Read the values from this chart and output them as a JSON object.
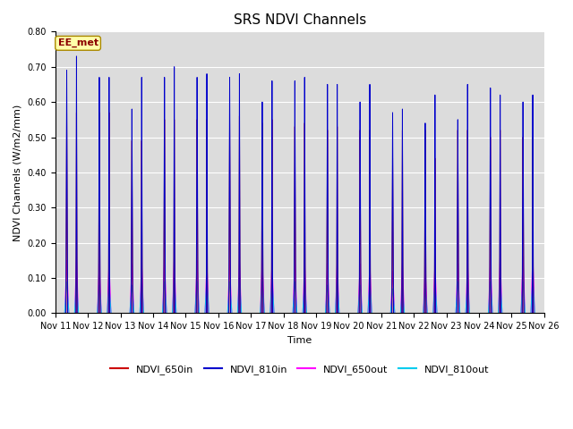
{
  "title": "SRS NDVI Channels",
  "xlabel": "Time",
  "ylabel": "NDVI Channels (W/m2/mm)",
  "ylim": [
    0.0,
    0.8
  ],
  "yticks": [
    0.0,
    0.1,
    0.2,
    0.3,
    0.4,
    0.5,
    0.6,
    0.7,
    0.8
  ],
  "annotation": "EE_met",
  "bg_color": "#dcdcdc",
  "legend_entries": [
    "NDVI_650in",
    "NDVI_810in",
    "NDVI_650out",
    "NDVI_810out"
  ],
  "line_colors": [
    "#cc0000",
    "#0000cc",
    "#ff00ff",
    "#00ccee"
  ],
  "n_days": 15,
  "start_day": 11,
  "peaks_810in_am": [
    0.69,
    0.67,
    0.58,
    0.67,
    0.67,
    0.67,
    0.6,
    0.66,
    0.65,
    0.6,
    0.57,
    0.54,
    0.55,
    0.64,
    0.6
  ],
  "peaks_810in_pm": [
    0.73,
    0.67,
    0.67,
    0.7,
    0.68,
    0.68,
    0.66,
    0.67,
    0.65,
    0.65,
    0.58,
    0.62,
    0.65,
    0.62,
    0.62
  ],
  "peaks_650in_am": [
    0.57,
    0.57,
    0.49,
    0.55,
    0.55,
    0.55,
    0.54,
    0.53,
    0.52,
    0.52,
    0.44,
    0.52,
    0.52,
    0.5,
    0.5
  ],
  "peaks_650in_pm": [
    0.57,
    0.57,
    0.49,
    0.55,
    0.55,
    0.56,
    0.55,
    0.54,
    0.53,
    0.52,
    0.52,
    0.44,
    0.52,
    0.52,
    0.5
  ],
  "peaks_650out_am": [
    0.15,
    0.14,
    0.14,
    0.15,
    0.15,
    0.15,
    0.15,
    0.15,
    0.14,
    0.14,
    0.12,
    0.13,
    0.14,
    0.15,
    0.16
  ],
  "peaks_650out_pm": [
    0.16,
    0.15,
    0.15,
    0.16,
    0.15,
    0.15,
    0.15,
    0.15,
    0.15,
    0.15,
    0.14,
    0.15,
    0.15,
    0.17,
    0.17
  ],
  "peaks_810out_am": [
    0.09,
    0.08,
    0.08,
    0.09,
    0.09,
    0.09,
    0.09,
    0.09,
    0.08,
    0.08,
    0.07,
    0.07,
    0.09,
    0.09,
    0.09
  ],
  "peaks_810out_pm": [
    0.09,
    0.08,
    0.1,
    0.1,
    0.1,
    0.1,
    0.1,
    0.09,
    0.1,
    0.09,
    0.07,
    0.09,
    0.09,
    0.1,
    0.1
  ],
  "title_fontsize": 11,
  "tick_fontsize": 7,
  "label_fontsize": 8
}
